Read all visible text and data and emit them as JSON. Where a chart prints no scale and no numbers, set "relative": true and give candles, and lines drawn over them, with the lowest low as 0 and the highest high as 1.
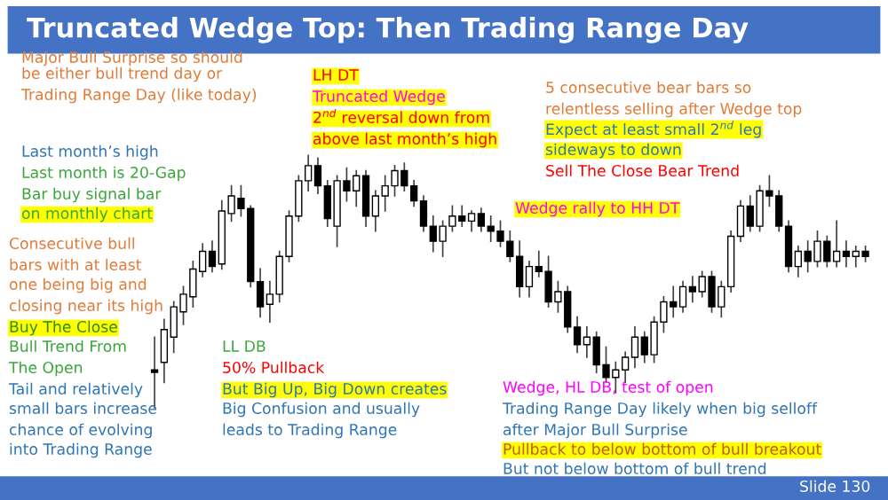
{
  "chart_data": {
    "type": "candlestick",
    "relative": true,
    "title": "Truncated Wedge Top: Then Trading Range Day",
    "annotations": [
      "Major Bull Surprise so should",
      "be either bull trend day or",
      "Trading Range Day (like today)",
      "Last month’s high",
      "Last month is 20-Gap",
      "Bar buy signal bar",
      "on monthly chart",
      "Consecutive bull",
      "bars with at least",
      "one being big and",
      "closing near its high",
      "Buy The Close",
      "Bull Trend From",
      "The Open",
      "Tail and relatively",
      "small bars increase",
      "chance of evolving",
      "into Trading Range",
      "LH DT",
      "Truncated Wedge",
      "2$^{nd}$ reversal down from",
      "above last month’s high",
      "5 consecutive bear bars so",
      "relentless selling after Wedge top",
      "Expect at least small 2$^{nd}$ leg",
      "sideways to down",
      "Sell The Close Bear Trend",
      "Wedge rally to HH DT",
      "LL DB",
      "50% Pullback",
      "But Big Up, Big Down creates",
      "Big Confusion and usually",
      "leads to Trading Range",
      "Wedge, HL DB, test of open",
      "Trading Range Day likely when big selloff",
      "after Major Bull Surprise",
      "Pullback to below bottom of bull breakout",
      "But not below bottom of bull trend",
      "Slide 130"
    ],
    "categories": [
      null,
      null,
      null,
      null,
      null,
      null,
      null,
      null,
      null,
      null,
      null,
      null,
      null,
      null,
      null,
      null,
      null,
      null,
      null,
      null,
      null,
      null,
      null,
      null,
      null,
      null,
      null,
      null,
      null,
      null,
      null,
      null,
      null,
      null,
      null,
      null,
      null,
      null,
      null,
      null,
      null,
      null,
      null,
      null,
      null,
      null,
      null,
      null,
      null,
      null,
      null,
      null,
      null,
      null,
      null,
      null,
      null,
      null,
      null,
      null,
      null,
      null,
      null,
      null,
      null,
      null,
      null,
      null,
      null,
      null,
      null,
      null,
      null,
      null,
      null
    ],
    "ohlc": [
      [
        0.15,
        0.28,
        0.0,
        0.14
      ],
      [
        0.18,
        0.35,
        0.1,
        0.31
      ],
      [
        0.28,
        0.42,
        0.22,
        0.4
      ],
      [
        0.38,
        0.48,
        0.33,
        0.45
      ],
      [
        0.44,
        0.58,
        0.4,
        0.55
      ],
      [
        0.54,
        0.65,
        0.52,
        0.62
      ],
      [
        0.62,
        0.66,
        0.54,
        0.56
      ],
      [
        0.57,
        0.82,
        0.55,
        0.78
      ],
      [
        0.77,
        0.88,
        0.74,
        0.84
      ],
      [
        0.83,
        0.88,
        0.76,
        0.79
      ],
      [
        0.79,
        0.8,
        0.48,
        0.5
      ],
      [
        0.5,
        0.55,
        0.36,
        0.4
      ],
      [
        0.41,
        0.5,
        0.34,
        0.45
      ],
      [
        0.45,
        0.62,
        0.42,
        0.6
      ],
      [
        0.6,
        0.78,
        0.58,
        0.76
      ],
      [
        0.76,
        0.92,
        0.74,
        0.9
      ],
      [
        0.9,
        1.0,
        0.86,
        0.96
      ],
      [
        0.96,
        0.99,
        0.85,
        0.88
      ],
      [
        0.88,
        0.9,
        0.72,
        0.75
      ],
      [
        0.72,
        0.92,
        0.64,
        0.9
      ],
      [
        0.9,
        0.95,
        0.82,
        0.86
      ],
      [
        0.86,
        0.94,
        0.8,
        0.92
      ],
      [
        0.92,
        0.94,
        0.72,
        0.76
      ],
      [
        0.76,
        0.86,
        0.7,
        0.84
      ],
      [
        0.84,
        0.92,
        0.78,
        0.88
      ],
      [
        0.88,
        0.96,
        0.84,
        0.94
      ],
      [
        0.94,
        0.97,
        0.86,
        0.88
      ],
      [
        0.88,
        0.9,
        0.8,
        0.82
      ],
      [
        0.82,
        0.84,
        0.7,
        0.72
      ],
      [
        0.72,
        0.76,
        0.62,
        0.66
      ],
      [
        0.66,
        0.74,
        0.6,
        0.72
      ],
      [
        0.72,
        0.8,
        0.7,
        0.76
      ],
      [
        0.76,
        0.8,
        0.72,
        0.74
      ],
      [
        0.74,
        0.78,
        0.7,
        0.77
      ],
      [
        0.77,
        0.79,
        0.7,
        0.72
      ],
      [
        0.72,
        0.76,
        0.66,
        0.7
      ],
      [
        0.7,
        0.74,
        0.64,
        0.66
      ],
      [
        0.66,
        0.7,
        0.58,
        0.6
      ],
      [
        0.6,
        0.66,
        0.44,
        0.48
      ],
      [
        0.48,
        0.58,
        0.44,
        0.56
      ],
      [
        0.56,
        0.62,
        0.52,
        0.54
      ],
      [
        0.54,
        0.6,
        0.4,
        0.42
      ],
      [
        0.42,
        0.5,
        0.38,
        0.46
      ],
      [
        0.46,
        0.48,
        0.3,
        0.32
      ],
      [
        0.32,
        0.36,
        0.22,
        0.25
      ],
      [
        0.25,
        0.32,
        0.2,
        0.28
      ],
      [
        0.28,
        0.3,
        0.14,
        0.17
      ],
      [
        0.17,
        0.24,
        0.1,
        0.12
      ],
      [
        0.12,
        0.18,
        0.06,
        0.15
      ],
      [
        0.15,
        0.22,
        0.1,
        0.2
      ],
      [
        0.2,
        0.32,
        0.16,
        0.28
      ],
      [
        0.28,
        0.3,
        0.18,
        0.21
      ],
      [
        0.21,
        0.36,
        0.18,
        0.34
      ],
      [
        0.34,
        0.44,
        0.3,
        0.42
      ],
      [
        0.42,
        0.48,
        0.36,
        0.4
      ],
      [
        0.4,
        0.5,
        0.38,
        0.48
      ],
      [
        0.48,
        0.52,
        0.42,
        0.46
      ],
      [
        0.46,
        0.54,
        0.44,
        0.52
      ],
      [
        0.52,
        0.54,
        0.38,
        0.4
      ],
      [
        0.4,
        0.5,
        0.36,
        0.48
      ],
      [
        0.48,
        0.7,
        0.46,
        0.68
      ],
      [
        0.68,
        0.82,
        0.66,
        0.8
      ],
      [
        0.8,
        0.84,
        0.7,
        0.72
      ],
      [
        0.72,
        0.88,
        0.7,
        0.86
      ],
      [
        0.86,
        0.92,
        0.8,
        0.84
      ],
      [
        0.84,
        0.86,
        0.7,
        0.72
      ],
      [
        0.72,
        0.74,
        0.54,
        0.56
      ],
      [
        0.56,
        0.64,
        0.52,
        0.62
      ],
      [
        0.62,
        0.66,
        0.54,
        0.58
      ],
      [
        0.58,
        0.7,
        0.56,
        0.66
      ],
      [
        0.66,
        0.68,
        0.56,
        0.58
      ],
      [
        0.58,
        0.74,
        0.56,
        0.62
      ],
      [
        0.62,
        0.66,
        0.56,
        0.6
      ],
      [
        0.6,
        0.64,
        0.56,
        0.62
      ],
      [
        0.62,
        0.64,
        0.58,
        0.6
      ]
    ]
  }
}
